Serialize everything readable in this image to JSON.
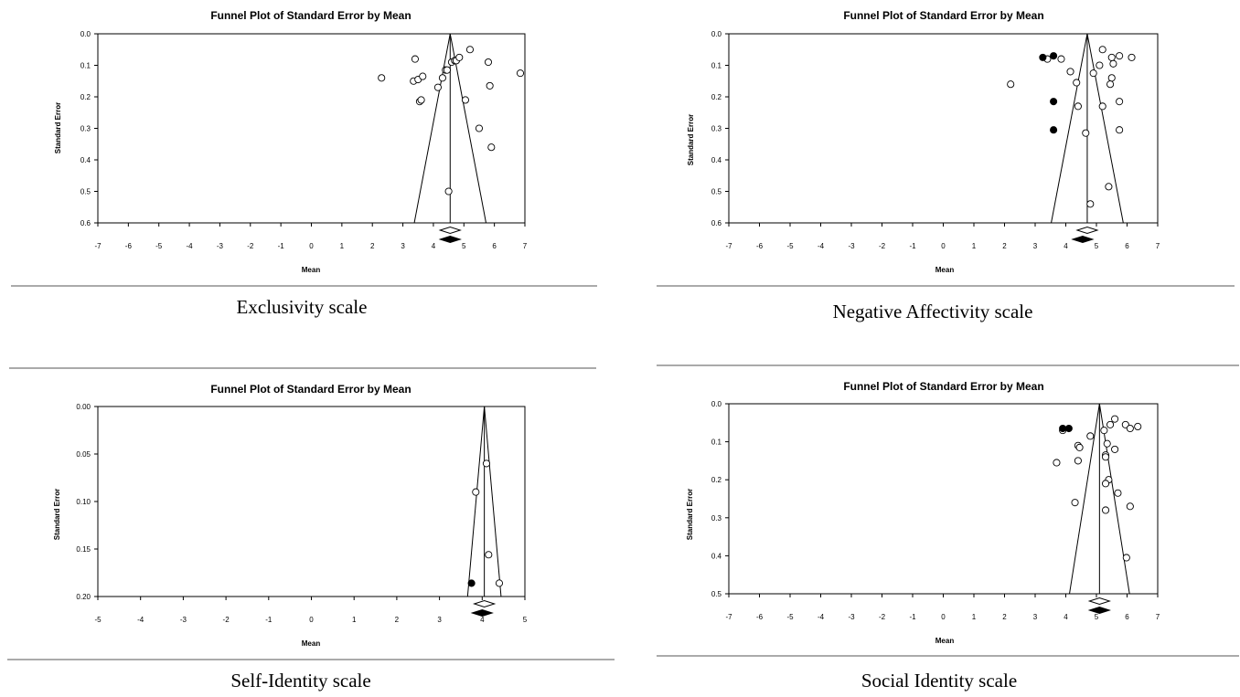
{
  "chart_data": [
    {
      "type": "scatter",
      "title": "Funnel Plot of Standard Error by Mean",
      "xlabel": "Mean",
      "ylabel": "Standard Error",
      "caption": "Exclusivity scale",
      "xlim": [
        -7,
        7
      ],
      "ylim": [
        0.6,
        0.0
      ],
      "x_ticks": [
        "-7",
        "-6",
        "-5",
        "-4",
        "-3",
        "-2",
        "-1",
        "0",
        "1",
        "2",
        "3",
        "4",
        "5",
        "6",
        "7"
      ],
      "y_ticks": [
        "0.0",
        "0.1",
        "0.2",
        "0.3",
        "0.4",
        "0.5",
        "0.6"
      ],
      "mean": 4.55,
      "adjusted_mean": 4.55,
      "observed": [
        [
          2.3,
          0.14
        ],
        [
          3.4,
          0.08
        ],
        [
          3.35,
          0.15
        ],
        [
          3.5,
          0.145
        ],
        [
          3.65,
          0.135
        ],
        [
          3.55,
          0.215
        ],
        [
          3.6,
          0.21
        ],
        [
          4.15,
          0.17
        ],
        [
          4.3,
          0.14
        ],
        [
          4.4,
          0.115
        ],
        [
          4.45,
          0.115
        ],
        [
          4.6,
          0.09
        ],
        [
          4.7,
          0.085
        ],
        [
          4.75,
          0.085
        ],
        [
          4.85,
          0.075
        ],
        [
          5.2,
          0.05
        ],
        [
          5.8,
          0.09
        ],
        [
          6.85,
          0.125
        ],
        [
          5.85,
          0.165
        ],
        [
          5.05,
          0.21
        ],
        [
          5.5,
          0.3
        ],
        [
          5.9,
          0.36
        ],
        [
          4.5,
          0.5
        ]
      ],
      "imputed": []
    },
    {
      "type": "scatter",
      "title": "Funnel Plot of Standard Error by Mean",
      "xlabel": "Mean",
      "ylabel": "Standard Error",
      "caption": "Negative Affectivity scale",
      "xlim": [
        -7,
        7
      ],
      "ylim": [
        0.6,
        0.0
      ],
      "x_ticks": [
        "-7",
        "-6",
        "-5",
        "-4",
        "-3",
        "-2",
        "-1",
        "0",
        "1",
        "2",
        "3",
        "4",
        "5",
        "6",
        "7"
      ],
      "y_ticks": [
        "0.0",
        "0.1",
        "0.2",
        "0.3",
        "0.4",
        "0.5",
        "0.6"
      ],
      "mean": 4.7,
      "adjusted_mean": 4.55,
      "observed": [
        [
          2.2,
          0.16
        ],
        [
          3.4,
          0.08
        ],
        [
          3.85,
          0.08
        ],
        [
          4.15,
          0.12
        ],
        [
          4.35,
          0.155
        ],
        [
          4.4,
          0.23
        ],
        [
          4.65,
          0.315
        ],
        [
          4.9,
          0.125
        ],
        [
          5.1,
          0.1
        ],
        [
          5.2,
          0.05
        ],
        [
          5.5,
          0.075
        ],
        [
          5.55,
          0.095
        ],
        [
          5.5,
          0.14
        ],
        [
          5.45,
          0.16
        ],
        [
          5.75,
          0.07
        ],
        [
          6.15,
          0.075
        ],
        [
          5.75,
          0.215
        ],
        [
          5.2,
          0.23
        ],
        [
          5.75,
          0.305
        ],
        [
          5.4,
          0.485
        ],
        [
          4.8,
          0.54
        ]
      ],
      "imputed": [
        [
          3.25,
          0.075
        ],
        [
          3.6,
          0.07
        ],
        [
          3.6,
          0.215
        ],
        [
          3.6,
          0.305
        ]
      ]
    },
    {
      "type": "scatter",
      "title": "Funnel Plot of Standard Error by Mean",
      "xlabel": "Mean",
      "ylabel": "Standard Error",
      "caption": "Self-Identity scale",
      "xlim": [
        -5,
        5
      ],
      "ylim": [
        0.2,
        0.0
      ],
      "x_ticks": [
        "-5",
        "-4",
        "-3",
        "-2",
        "-1",
        "0",
        "1",
        "2",
        "3",
        "4",
        "5"
      ],
      "y_ticks": [
        "0.00",
        "0.05",
        "0.10",
        "0.15",
        "0.20"
      ],
      "mean": 4.05,
      "adjusted_mean": 4.0,
      "observed": [
        [
          4.1,
          0.06
        ],
        [
          3.85,
          0.09
        ],
        [
          4.15,
          0.156
        ],
        [
          4.4,
          0.186
        ]
      ],
      "imputed": [
        [
          3.75,
          0.186
        ]
      ]
    },
    {
      "type": "scatter",
      "title": "Funnel Plot of Standard Error by Mean",
      "xlabel": "Mean",
      "ylabel": "Standard Error",
      "caption": "Social Identity scale",
      "xlim": [
        -7,
        7
      ],
      "ylim": [
        0.5,
        0.0
      ],
      "x_ticks": [
        "-7",
        "-6",
        "-5",
        "-4",
        "-3",
        "-2",
        "-1",
        "0",
        "1",
        "2",
        "3",
        "4",
        "5",
        "6",
        "7"
      ],
      "y_ticks": [
        "0.0",
        "0.1",
        "0.2",
        "0.3",
        "0.4",
        "0.5"
      ],
      "mean": 5.1,
      "adjusted_mean": 5.1,
      "observed": [
        [
          3.9,
          0.07
        ],
        [
          3.7,
          0.155
        ],
        [
          4.3,
          0.26
        ],
        [
          4.4,
          0.11
        ],
        [
          4.45,
          0.115
        ],
        [
          4.4,
          0.15
        ],
        [
          4.8,
          0.085
        ],
        [
          5.25,
          0.07
        ],
        [
          5.45,
          0.055
        ],
        [
          5.35,
          0.105
        ],
        [
          5.3,
          0.135
        ],
        [
          5.3,
          0.14
        ],
        [
          5.6,
          0.12
        ],
        [
          5.4,
          0.2
        ],
        [
          5.3,
          0.21
        ],
        [
          5.3,
          0.28
        ],
        [
          5.6,
          0.04
        ],
        [
          5.95,
          0.055
        ],
        [
          6.1,
          0.065
        ],
        [
          6.35,
          0.06
        ],
        [
          5.7,
          0.235
        ],
        [
          6.1,
          0.27
        ],
        [
          5.98,
          0.405
        ]
      ],
      "imputed": [
        [
          3.9,
          0.065
        ],
        [
          4.1,
          0.065
        ]
      ]
    }
  ]
}
